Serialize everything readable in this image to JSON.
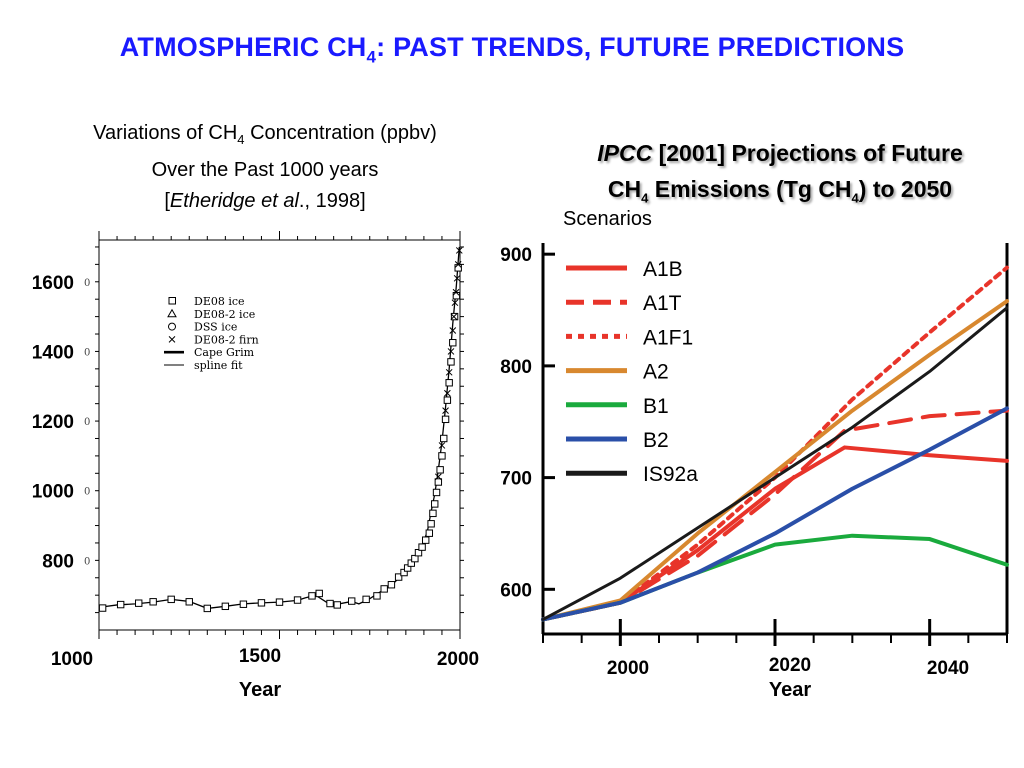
{
  "slide": {
    "title_pre": "ATMOSPHERIC CH",
    "title_sub": "4",
    "title_post": ": PAST TRENDS, FUTURE PREDICTIONS"
  },
  "left_caption": {
    "line1_pre": "Variations of CH",
    "line1_sub": "4",
    "line1_post": " Concentration (ppbv)",
    "line2": "Over the Past 1000 years",
    "line3_open": "[",
    "line3_italic": "Etheridge et al",
    "line3_post": "., 1998]"
  },
  "right_caption": {
    "italic": "IPCC",
    "line1_post": " [2001] Projections of Future",
    "line2_pre": "CH",
    "line2_sub": "4",
    "line2_mid": " Emissions (Tg CH",
    "line2_sub2": "4",
    "line2_post": ") to 2050"
  },
  "scenarios_label": "Scenarios",
  "chart_data": [
    {
      "type": "scatter",
      "title": "",
      "xlabel": "Year",
      "ylabel": "",
      "xlim": [
        1000,
        2000
      ],
      "ylim": [
        600,
        1720
      ],
      "x_ticks": [
        1000,
        1500,
        2000
      ],
      "y_ticks": [
        800,
        1000,
        1200,
        1400,
        1600
      ],
      "legend_position": "top-left",
      "legend": [
        "DE08 ice",
        "DE08-2 ice",
        "DSS ice",
        "DE08-2 firn",
        "Cape Grim",
        "spline fit"
      ],
      "series": [
        {
          "name": "spline fit",
          "x": [
            1000,
            1050,
            1100,
            1150,
            1200,
            1250,
            1300,
            1350,
            1400,
            1450,
            1500,
            1550,
            1570,
            1600,
            1630,
            1650,
            1700,
            1720,
            1750,
            1780,
            1800,
            1820,
            1850,
            1870,
            1880,
            1900,
            1910,
            1920,
            1930,
            1940,
            1950,
            1960,
            1970,
            1980,
            1990,
            1998
          ],
          "y": [
            665,
            672,
            675,
            680,
            688,
            682,
            662,
            668,
            675,
            678,
            680,
            685,
            692,
            700,
            680,
            672,
            682,
            675,
            690,
            710,
            722,
            738,
            770,
            800,
            818,
            855,
            885,
            940,
            990,
            1060,
            1140,
            1240,
            1350,
            1480,
            1590,
            1700
          ]
        },
        {
          "name": "DE08 ice",
          "x": [
            1010,
            1060,
            1110,
            1150,
            1200,
            1250,
            1300,
            1350,
            1400,
            1450,
            1500,
            1550,
            1590,
            1610,
            1640,
            1660,
            1700,
            1740,
            1770,
            1790,
            1810,
            1830,
            1845,
            1855,
            1865,
            1875,
            1885,
            1895,
            1905,
            1915,
            1920,
            1925,
            1930,
            1935,
            1940,
            1945,
            1950,
            1955,
            1960,
            1965,
            1970,
            1975,
            1980,
            1985,
            1990,
            1995
          ],
          "y": [
            663,
            673,
            677,
            681,
            688,
            681,
            662,
            668,
            674,
            678,
            680,
            686,
            698,
            705,
            676,
            672,
            683,
            688,
            698,
            718,
            730,
            752,
            765,
            778,
            792,
            805,
            822,
            838,
            858,
            878,
            905,
            935,
            962,
            995,
            1025,
            1060,
            1100,
            1150,
            1205,
            1260,
            1310,
            1370,
            1425,
            1500,
            1560,
            1640
          ]
        },
        {
          "name": "DE08-2 firn",
          "x": [
            1940,
            1950,
            1960,
            1965,
            1970,
            1975,
            1980,
            1983,
            1986,
            1989,
            1992,
            1995,
            1998
          ],
          "y": [
            1040,
            1130,
            1230,
            1280,
            1340,
            1400,
            1460,
            1500,
            1540,
            1570,
            1610,
            1650,
            1690
          ]
        }
      ]
    },
    {
      "type": "line",
      "title": "",
      "xlabel": "Year",
      "ylabel": "",
      "xlim": [
        1990,
        2050
      ],
      "ylim": [
        560,
        910
      ],
      "x_ticks": [
        2000,
        2020,
        2040
      ],
      "y_ticks": [
        600,
        700,
        800,
        900
      ],
      "legend_position": "top-left",
      "series": [
        {
          "name": "A1B",
          "x": [
            1990,
            2000,
            2010,
            2020,
            2029,
            2040,
            2050
          ],
          "y": [
            573,
            588,
            635,
            690,
            727,
            720,
            715
          ],
          "color": "#e8342a",
          "style": "solid"
        },
        {
          "name": "A1T",
          "x": [
            1990,
            2000,
            2010,
            2020,
            2029,
            2040,
            2050
          ],
          "y": [
            573,
            588,
            630,
            685,
            742,
            755,
            760
          ],
          "color": "#e8342a",
          "style": "dashed"
        },
        {
          "name": "A1F1",
          "x": [
            1990,
            2000,
            2010,
            2020,
            2030,
            2040,
            2050
          ],
          "y": [
            573,
            588,
            640,
            700,
            770,
            830,
            888
          ],
          "color": "#e8342a",
          "style": "dotted"
        },
        {
          "name": "A2",
          "x": [
            1990,
            2000,
            2010,
            2020,
            2030,
            2040,
            2050
          ],
          "y": [
            573,
            590,
            650,
            705,
            760,
            810,
            858
          ],
          "color": "#d8882f",
          "style": "solid"
        },
        {
          "name": "B1",
          "x": [
            1990,
            2000,
            2010,
            2020,
            2030,
            2040,
            2050
          ],
          "y": [
            573,
            588,
            615,
            640,
            648,
            645,
            622
          ],
          "color": "#1aaa3d",
          "style": "solid"
        },
        {
          "name": "B2",
          "x": [
            1990,
            2000,
            2010,
            2020,
            2030,
            2040,
            2050
          ],
          "y": [
            573,
            588,
            615,
            650,
            690,
            725,
            762
          ],
          "color": "#2a4fa8",
          "style": "solid"
        },
        {
          "name": "IS92a",
          "x": [
            1990,
            2000,
            2010,
            2020,
            2030,
            2040,
            2050
          ],
          "y": [
            573,
            610,
            655,
            700,
            745,
            795,
            852
          ],
          "color": "#1a1a1a",
          "style": "solid"
        }
      ]
    }
  ]
}
